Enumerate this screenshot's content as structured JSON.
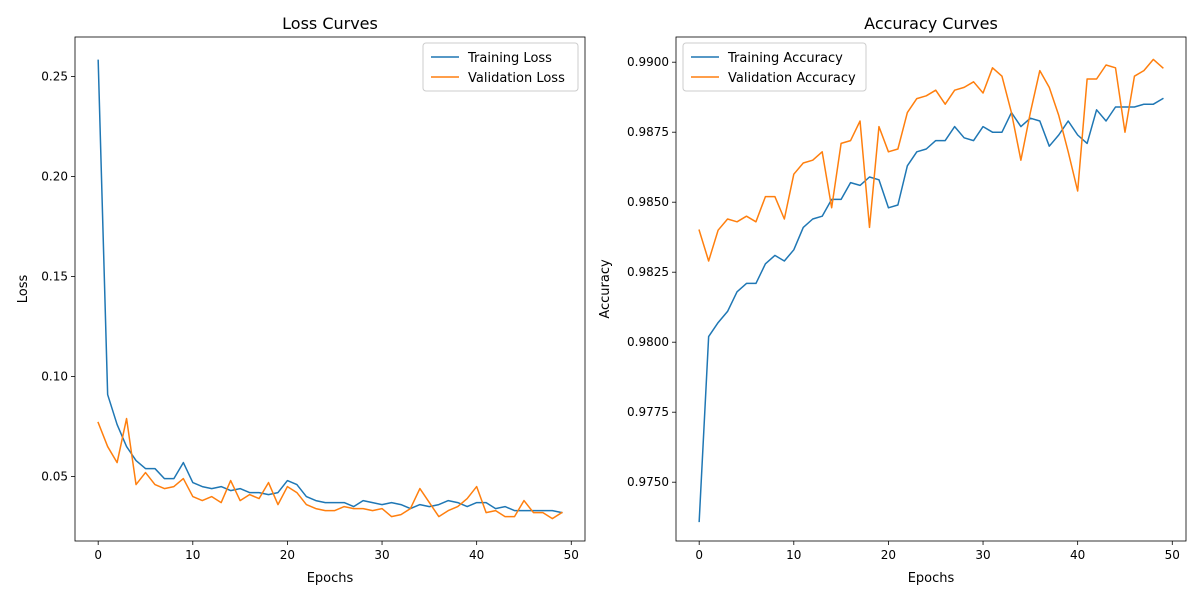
{
  "chart_data": [
    {
      "type": "line",
      "title": "Loss Curves",
      "xlabel": "Epochs",
      "ylabel": "Loss",
      "xlim": [
        -2.45,
        51.45
      ],
      "ylim": [
        0.0178,
        0.2697
      ],
      "xticks": [
        0,
        10,
        20,
        30,
        40,
        50
      ],
      "xtick_labels": [
        "0",
        "10",
        "20",
        "30",
        "40",
        "50"
      ],
      "yticks": [
        0.05,
        0.1,
        0.15,
        0.2,
        0.25
      ],
      "ytick_labels": [
        "0.05",
        "0.10",
        "0.15",
        "0.20",
        "0.25"
      ],
      "legend_position": "top-right",
      "series": [
        {
          "name": "Training Loss",
          "color": "#1f77b4",
          "x": [
            0,
            1,
            2,
            3,
            4,
            5,
            6,
            7,
            8,
            9,
            10,
            11,
            12,
            13,
            14,
            15,
            16,
            17,
            18,
            19,
            20,
            21,
            22,
            23,
            24,
            25,
            26,
            27,
            28,
            29,
            30,
            31,
            32,
            33,
            34,
            35,
            36,
            37,
            38,
            39,
            40,
            41,
            42,
            43,
            44,
            45,
            46,
            47,
            48,
            49
          ],
          "values": [
            0.258,
            0.091,
            0.076,
            0.065,
            0.058,
            0.054,
            0.054,
            0.049,
            0.049,
            0.057,
            0.047,
            0.045,
            0.044,
            0.045,
            0.043,
            0.044,
            0.042,
            0.042,
            0.041,
            0.042,
            0.048,
            0.046,
            0.04,
            0.038,
            0.037,
            0.037,
            0.037,
            0.035,
            0.038,
            0.037,
            0.036,
            0.037,
            0.036,
            0.034,
            0.036,
            0.035,
            0.036,
            0.038,
            0.037,
            0.035,
            0.037,
            0.037,
            0.034,
            0.035,
            0.033,
            0.033,
            0.033,
            0.033,
            0.033,
            0.032
          ]
        },
        {
          "name": "Validation Loss",
          "color": "#ff7f0e",
          "x": [
            0,
            1,
            2,
            3,
            4,
            5,
            6,
            7,
            8,
            9,
            10,
            11,
            12,
            13,
            14,
            15,
            16,
            17,
            18,
            19,
            20,
            21,
            22,
            23,
            24,
            25,
            26,
            27,
            28,
            29,
            30,
            31,
            32,
            33,
            34,
            35,
            36,
            37,
            38,
            39,
            40,
            41,
            42,
            43,
            44,
            45,
            46,
            47,
            48,
            49
          ],
          "values": [
            0.077,
            0.065,
            0.057,
            0.079,
            0.046,
            0.052,
            0.046,
            0.044,
            0.045,
            0.049,
            0.04,
            0.038,
            0.04,
            0.037,
            0.048,
            0.038,
            0.041,
            0.039,
            0.047,
            0.036,
            0.045,
            0.042,
            0.036,
            0.034,
            0.033,
            0.033,
            0.035,
            0.034,
            0.034,
            0.033,
            0.034,
            0.03,
            0.031,
            0.034,
            0.044,
            0.037,
            0.03,
            0.033,
            0.035,
            0.039,
            0.045,
            0.032,
            0.033,
            0.03,
            0.03,
            0.038,
            0.032,
            0.032,
            0.029,
            0.032
          ]
        }
      ]
    },
    {
      "type": "line",
      "title": "Accuracy Curves",
      "xlabel": "Epochs",
      "ylabel": "Accuracy",
      "xlim": [
        -2.45,
        51.45
      ],
      "ylim": [
        0.9729,
        0.9909
      ],
      "xticks": [
        0,
        10,
        20,
        30,
        40,
        50
      ],
      "xtick_labels": [
        "0",
        "10",
        "20",
        "30",
        "40",
        "50"
      ],
      "yticks": [
        0.975,
        0.9775,
        0.98,
        0.9825,
        0.985,
        0.9875,
        0.99
      ],
      "ytick_labels": [
        "0.9750",
        "0.9775",
        "0.9800",
        "0.9825",
        "0.9850",
        "0.9875",
        "0.9900"
      ],
      "legend_position": "top-left",
      "series": [
        {
          "name": "Training Accuracy",
          "color": "#1f77b4",
          "x": [
            0,
            1,
            2,
            3,
            4,
            5,
            6,
            7,
            8,
            9,
            10,
            11,
            12,
            13,
            14,
            15,
            16,
            17,
            18,
            19,
            20,
            21,
            22,
            23,
            24,
            25,
            26,
            27,
            28,
            29,
            30,
            31,
            32,
            33,
            34,
            35,
            36,
            37,
            38,
            39,
            40,
            41,
            42,
            43,
            44,
            45,
            46,
            47,
            48,
            49
          ],
          "values": [
            0.9736,
            0.9802,
            0.9807,
            0.9811,
            0.9818,
            0.9821,
            0.9821,
            0.9828,
            0.9831,
            0.9829,
            0.9833,
            0.9841,
            0.9844,
            0.9845,
            0.9851,
            0.9851,
            0.9857,
            0.9856,
            0.9859,
            0.9858,
            0.9848,
            0.9849,
            0.9863,
            0.9868,
            0.9869,
            0.9872,
            0.9872,
            0.9877,
            0.9873,
            0.9872,
            0.9877,
            0.9875,
            0.9875,
            0.9882,
            0.9877,
            0.988,
            0.9879,
            0.987,
            0.9874,
            0.9879,
            0.9874,
            0.9871,
            0.9883,
            0.9879,
            0.9884,
            0.9884,
            0.9884,
            0.9885,
            0.9885,
            0.9887
          ]
        },
        {
          "name": "Validation Accuracy",
          "color": "#ff7f0e",
          "x": [
            0,
            1,
            2,
            3,
            4,
            5,
            6,
            7,
            8,
            9,
            10,
            11,
            12,
            13,
            14,
            15,
            16,
            17,
            18,
            19,
            20,
            21,
            22,
            23,
            24,
            25,
            26,
            27,
            28,
            29,
            30,
            31,
            32,
            33,
            34,
            35,
            36,
            37,
            38,
            39,
            40,
            41,
            42,
            43,
            44,
            45,
            46,
            47,
            48,
            49
          ],
          "values": [
            0.984,
            0.9829,
            0.984,
            0.9844,
            0.9843,
            0.9845,
            0.9843,
            0.9852,
            0.9852,
            0.9844,
            0.986,
            0.9864,
            0.9865,
            0.9868,
            0.9848,
            0.9871,
            0.9872,
            0.9879,
            0.9841,
            0.9877,
            0.9868,
            0.9869,
            0.9882,
            0.9887,
            0.9888,
            0.989,
            0.9885,
            0.989,
            0.9891,
            0.9893,
            0.9889,
            0.9898,
            0.9895,
            0.9882,
            0.9865,
            0.9882,
            0.9897,
            0.9891,
            0.9881,
            0.9868,
            0.9854,
            0.9894,
            0.9894,
            0.9899,
            0.9898,
            0.9875,
            0.9895,
            0.9897,
            0.9901,
            0.9898
          ]
        }
      ]
    }
  ]
}
